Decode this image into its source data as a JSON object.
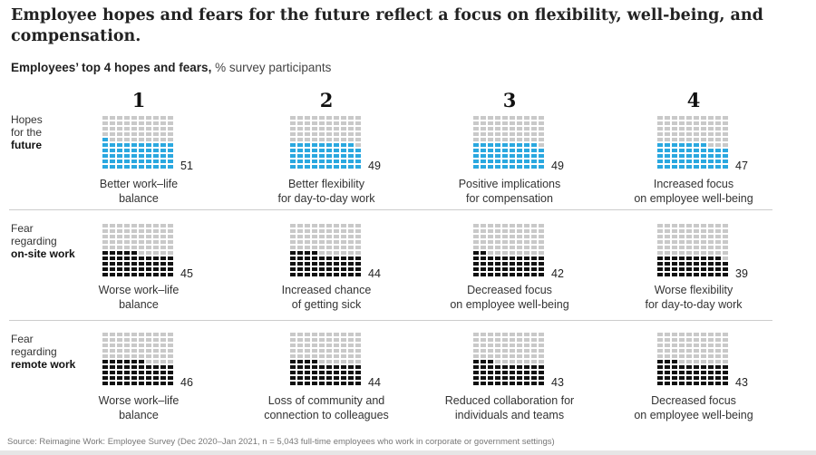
{
  "chart_data": {
    "type": "waffle",
    "title": "Employee hopes and fears for the future reflect a focus on flexibility, well-being, and compensation.",
    "subtitle_bold": "Employees’ top 4 hopes and fears,",
    "subtitle_unit": "% survey participants",
    "ranks": [
      "1",
      "2",
      "3",
      "4"
    ],
    "rows": [
      {
        "label_lines": [
          "Hopes",
          "for the"
        ],
        "label_bold": "future",
        "color": "#2aa8e0",
        "items": [
          {
            "value": 51,
            "label": [
              "Better work–life",
              "balance"
            ]
          },
          {
            "value": 49,
            "label": [
              "Better flexibility",
              "for day-to-day work"
            ]
          },
          {
            "value": 49,
            "label": [
              "Positive implications",
              "for compensation"
            ]
          },
          {
            "value": 47,
            "label": [
              "Increased focus",
              "on employee well-being"
            ]
          }
        ]
      },
      {
        "label_lines": [
          "Fear",
          "regarding"
        ],
        "label_bold": "on-site work",
        "color": "#111111",
        "items": [
          {
            "value": 45,
            "label": [
              "Worse work–life",
              "balance"
            ]
          },
          {
            "value": 44,
            "label": [
              "Increased chance",
              "of getting sick"
            ]
          },
          {
            "value": 42,
            "label": [
              "Decreased focus",
              "on employee well-being"
            ]
          },
          {
            "value": 39,
            "label": [
              "Worse flexibility",
              "for day-to-day work"
            ]
          }
        ]
      },
      {
        "label_lines": [
          "Fear",
          "regarding"
        ],
        "label_bold": "remote work",
        "color": "#111111",
        "items": [
          {
            "value": 46,
            "label": [
              "Worse work–life",
              "balance"
            ]
          },
          {
            "value": 44,
            "label": [
              "Loss of community and",
              "connection to colleagues"
            ]
          },
          {
            "value": 43,
            "label": [
              "Reduced collaboration for",
              "individuals and teams"
            ]
          },
          {
            "value": 43,
            "label": [
              "Decreased focus",
              "on employee well-being"
            ]
          }
        ]
      }
    ],
    "empty_color": "#c9c9c9",
    "total_cells": 100,
    "source": "Source: Reimagine Work: Employee Survey (Dec 2020–Jan 2021, n = 5,043 full-time employees who work in corporate or government settings)"
  }
}
